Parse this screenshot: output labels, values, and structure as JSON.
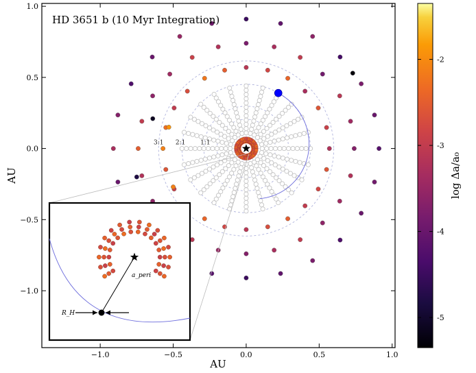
{
  "chart_data": {
    "type": "scatter",
    "title": "HD 3651 b (10 Myr Integration)",
    "xlabel": "AU",
    "ylabel": "AU",
    "xlim": [
      -1.4,
      1.02
    ],
    "ylim": [
      -1.4,
      1.02
    ],
    "x_ticks": [
      -1.0,
      -0.5,
      0.0,
      0.5,
      1.0
    ],
    "x_tick_labels": [
      "−1.0",
      "−0.5",
      "0.0",
      "0.5",
      "1.0"
    ],
    "y_ticks": [
      1.0,
      0.5,
      0.0,
      -0.5,
      -1.0
    ],
    "y_tick_labels": [
      "1.0",
      "0.5",
      "0.0",
      "−0.5",
      "−1.0"
    ],
    "grid": false,
    "star": {
      "x": 0.0,
      "y": 0.0
    },
    "planet": {
      "x": 0.22,
      "y": 0.39,
      "color": "#0000ff"
    },
    "planet_orbit_arc": {
      "from_deg": 60,
      "to_deg": -75,
      "color": "#6b6bdc"
    },
    "resonance_labels": [
      {
        "text": "3:1",
        "x": -0.6,
        "y": 0.03
      },
      {
        "text": "2:1",
        "x": -0.45,
        "y": 0.03
      },
      {
        "text": "1:1",
        "x": -0.28,
        "y": 0.03
      }
    ],
    "test_particles": {
      "rays": 24,
      "angle_start_deg": 0,
      "angle_step_deg": 15,
      "stable_radii": [
        0.11,
        0.14,
        0.17,
        0.2,
        0.23,
        0.26,
        0.29,
        0.32,
        0.35,
        0.38,
        0.41,
        0.44
      ],
      "stable_color": "#c4c4c4",
      "outer_radii": [
        0.57,
        0.74,
        0.91
      ],
      "log_da_outer": [
        [
          -3.2,
          -3.7,
          -4.2
        ],
        [
          -2.9,
          -3.4,
          -4.0
        ],
        [
          -2.6,
          -3.1,
          -3.8
        ],
        [
          -3.3,
          -3.9,
          -4.4
        ],
        [
          -2.4,
          -3.0,
          -3.6
        ],
        [
          -2.8,
          -3.3,
          -4.1
        ],
        [
          -3.1,
          -3.8,
          -4.5
        ],
        [
          -2.5,
          -3.2,
          -3.9
        ],
        [
          -2.2,
          -2.9,
          -3.5
        ],
        [
          -2.7,
          -3.4,
          -4.0
        ],
        [
          -3.0,
          -3.6,
          -4.3
        ],
        [
          -2.3,
          -3.0,
          -3.7
        ],
        [
          -2.1,
          -2.5,
          -3.3
        ],
        [
          -2.6,
          -3.2,
          -4.0
        ],
        [
          -2.9,
          -3.6,
          -4.4
        ],
        [
          -3.2,
          -3.8,
          -4.6
        ],
        [
          -2.4,
          -3.1,
          -3.8
        ],
        [
          -2.8,
          -3.5,
          -4.2
        ],
        [
          -3.1,
          -3.7,
          -4.5
        ],
        [
          -2.7,
          -3.3,
          -4.1
        ],
        [
          -2.5,
          -3.0,
          -3.8
        ],
        [
          -3.0,
          -3.6,
          -4.3
        ],
        [
          -2.8,
          -3.4,
          -4.0
        ],
        [
          -2.6,
          -3.2,
          -3.9
        ]
      ],
      "extra_points": [
        {
          "x": -0.64,
          "y": 0.21,
          "log_da": -5.1
        },
        {
          "x": 0.73,
          "y": 0.53,
          "log_da": -5.3
        },
        {
          "x": -0.75,
          "y": -0.2,
          "log_da": -4.8
        },
        {
          "x": -0.53,
          "y": 0.15,
          "log_da": -1.9
        },
        {
          "x": -0.5,
          "y": -0.27,
          "log_da": -2.1
        }
      ],
      "inner_ring_radii": [
        0.04,
        0.055,
        0.07
      ],
      "inner_ring_count": 36
    },
    "colorbar": {
      "label": "log Δa/a₀",
      "cmap": "inferno",
      "range": [
        -5.35,
        -1.35
      ],
      "ticks": [
        -2,
        -3,
        -4,
        -5
      ],
      "tick_labels": [
        "-2",
        "-3",
        "-4",
        "-5"
      ]
    },
    "inset": {
      "star_label": "★",
      "apsis_label": "a_peri",
      "hill_label": "R_H",
      "particle_rings": [
        {
          "radius": 0.62,
          "count": 22
        },
        {
          "radius": 0.74,
          "count": 22
        },
        {
          "radius": 0.86,
          "count": 22
        }
      ],
      "gap_start_deg": 220,
      "gap_end_deg": 320,
      "log_da_range": [
        -2.9,
        -2.3
      ]
    }
  }
}
